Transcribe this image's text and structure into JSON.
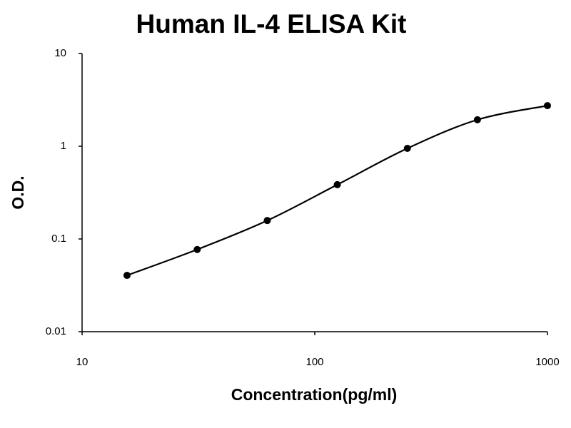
{
  "chart_data": {
    "type": "scatter",
    "title": "Human IL-4 ELISA Kit",
    "xlabel": "Concentration(pg/ml)",
    "ylabel": "O.D.",
    "x": [
      15.6,
      31.25,
      62.5,
      125,
      250,
      500,
      1000
    ],
    "values": [
      0.0405,
      0.077,
      0.158,
      0.385,
      0.948,
      1.93,
      2.74
    ],
    "color": "#000000",
    "line": "smooth",
    "xscale": "log",
    "yscale": "log",
    "xlim": [
      10,
      1000
    ],
    "xticks": [
      10,
      100,
      1000
    ],
    "ylim": [
      0.01,
      10
    ],
    "yticks": [
      0.01,
      0.1,
      1,
      10
    ],
    "grid": false
  }
}
